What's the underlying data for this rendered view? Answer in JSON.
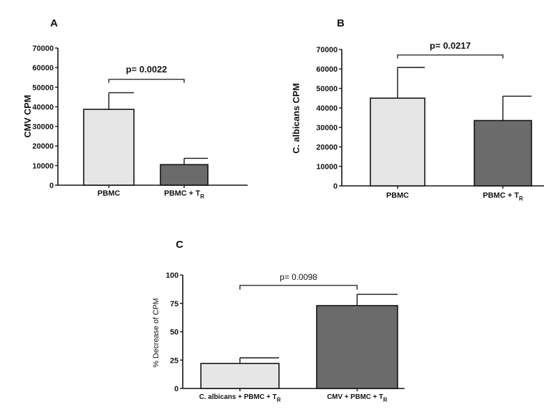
{
  "chart_data": [
    {
      "type": "bar",
      "panel": "A",
      "ylabel": "CMV CPM",
      "ylim": [
        0,
        70000
      ],
      "yticks": [
        "0",
        "10000",
        "20000",
        "30000",
        "40000",
        "50000",
        "60000",
        "70000"
      ],
      "categories": [
        {
          "main": "PBMC",
          "sub": ""
        },
        {
          "main": "PBMC + T",
          "sub": "R"
        }
      ],
      "values": [
        38700,
        10500
      ],
      "errors": [
        8500,
        3200
      ],
      "colors": [
        "#e6e6e6",
        "#6b6b6b"
      ],
      "pvalue": "p= 0.0022"
    },
    {
      "type": "bar",
      "panel": "B",
      "ylabel": "C. albicans CPM",
      "ylim": [
        0,
        70000
      ],
      "yticks": [
        "0",
        "10000",
        "20000",
        "30000",
        "40000",
        "50000",
        "60000",
        "70000"
      ],
      "categories": [
        {
          "main": "PBMC",
          "sub": ""
        },
        {
          "main": "PBMC + T",
          "sub": "R"
        }
      ],
      "values": [
        45000,
        33500
      ],
      "errors": [
        15800,
        12500
      ],
      "colors": [
        "#e6e6e6",
        "#6b6b6b"
      ],
      "pvalue": "p= 0.0217"
    },
    {
      "type": "bar",
      "panel": "C",
      "ylabel": "% Decrease of CPM",
      "ylim": [
        0,
        100
      ],
      "yticks": [
        "0",
        "25",
        "50",
        "75",
        "100"
      ],
      "categories": [
        {
          "main": "C. albicans + PBMC + T",
          "sub": "R"
        },
        {
          "main": "CMV + PBMC + T",
          "sub": "R"
        }
      ],
      "values": [
        22,
        73
      ],
      "errors": [
        5,
        10
      ],
      "colors": [
        "#e6e6e6",
        "#6b6b6b"
      ],
      "pvalue": "p= 0.0098"
    }
  ]
}
